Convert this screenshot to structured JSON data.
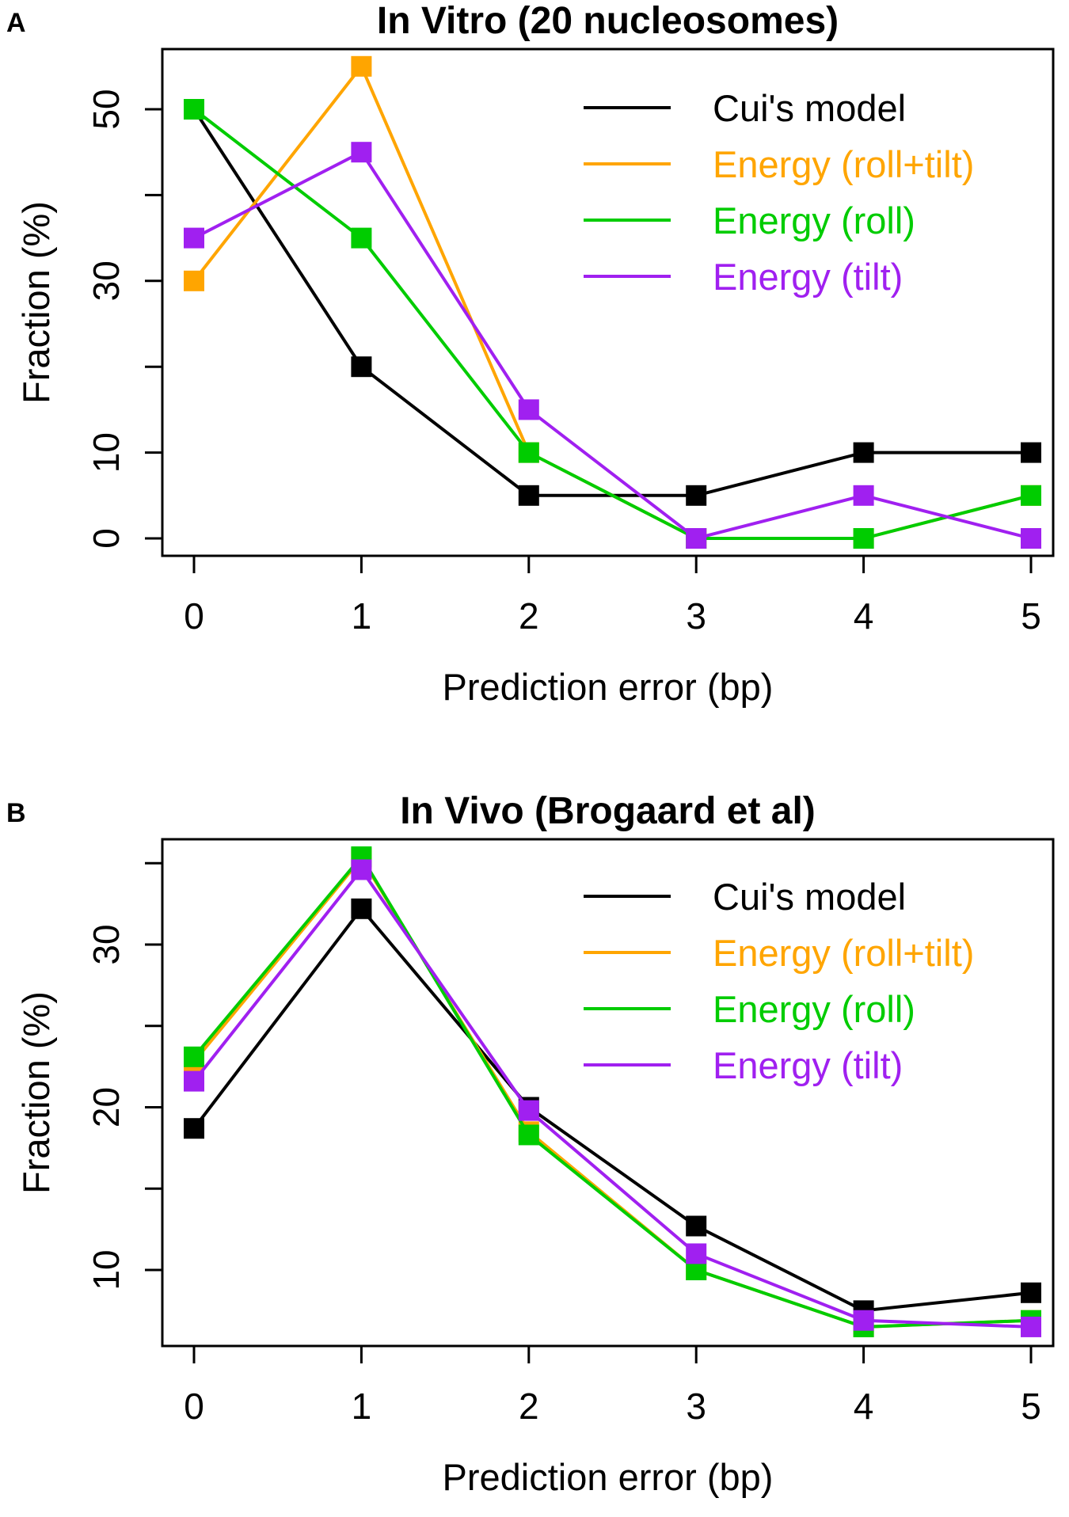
{
  "chart_data": [
    {
      "panel_label": "A",
      "type": "line",
      "title": "In Vitro (20 nucleosomes)",
      "xlabel": "Prediction error (bp)",
      "ylabel": "Fraction (%)",
      "x": [
        0,
        1,
        2,
        3,
        4,
        5
      ],
      "x_tick_labels": [
        "0",
        "1",
        "2",
        "3",
        "4",
        "5"
      ],
      "xlim": [
        0,
        5
      ],
      "ylim": [
        -1,
        56
      ],
      "y_ticks": [
        0,
        10,
        20,
        30,
        40,
        50
      ],
      "y_tick_labels": [
        "0",
        "10",
        "",
        "30",
        "",
        "50"
      ],
      "legend_position": "top-right",
      "series": [
        {
          "name": "Cui's model",
          "color": "#000000",
          "values": [
            50,
            20,
            5,
            5,
            10,
            10
          ]
        },
        {
          "name": "Energy (roll+tilt)",
          "color": "#FFA500",
          "values": [
            30,
            55,
            10,
            0,
            0,
            5
          ]
        },
        {
          "name": "Energy (roll)",
          "color": "#00CC00",
          "values": [
            50,
            35,
            10,
            0,
            0,
            5
          ]
        },
        {
          "name": "Energy (tilt)",
          "color": "#A020F0",
          "values": [
            35,
            45,
            15,
            0,
            5,
            0
          ]
        }
      ]
    },
    {
      "panel_label": "B",
      "type": "line",
      "title": "In Vivo (Brogaard et al)",
      "xlabel": "Prediction error (bp)",
      "ylabel": "Fraction (%)",
      "x": [
        0,
        1,
        2,
        3,
        4,
        5
      ],
      "x_tick_labels": [
        "0",
        "1",
        "2",
        "3",
        "4",
        "5"
      ],
      "xlim": [
        0,
        5
      ],
      "ylim": [
        5.2,
        35.8
      ],
      "y_ticks": [
        10,
        15,
        20,
        25,
        30,
        35
      ],
      "y_tick_labels": [
        "10",
        "",
        "20",
        "",
        "30",
        ""
      ],
      "legend_position": "top-right",
      "series": [
        {
          "name": "Cui's model",
          "color": "#000000",
          "values": [
            18.7,
            32.2,
            20.0,
            12.7,
            7.5,
            8.6
          ]
        },
        {
          "name": "Energy (roll+tilt)",
          "color": "#FFA500",
          "values": [
            22.8,
            35.3,
            18.5,
            10.0,
            6.5,
            6.9
          ]
        },
        {
          "name": "Energy (roll)",
          "color": "#00CC00",
          "values": [
            23.1,
            35.4,
            18.3,
            10.0,
            6.5,
            6.9
          ]
        },
        {
          "name": "Energy (tilt)",
          "color": "#A020F0",
          "values": [
            21.6,
            34.6,
            19.8,
            11.0,
            6.9,
            6.5
          ]
        }
      ]
    }
  ]
}
